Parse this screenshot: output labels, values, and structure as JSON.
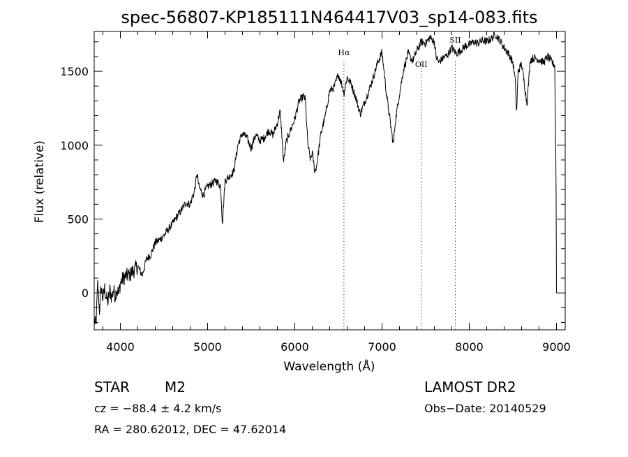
{
  "chart_data": {
    "type": "line",
    "title": "spec-56807-KP185111N464417V03_sp14-083.fits",
    "xlabel": "Wavelength (Å)",
    "ylabel": "Flux (relative)",
    "xlim": [
      3700,
      9100
    ],
    "ylim": [
      -250,
      1770
    ],
    "x_ticks": [
      4000,
      5000,
      6000,
      7000,
      8000,
      9000
    ],
    "y_ticks": [
      0,
      500,
      1000,
      1500
    ],
    "x_minor_step": 200,
    "y_minor_step": 100,
    "grid": false,
    "line_color": "#000000",
    "marker_color": "#cc0000",
    "series": [
      {
        "values": [
          [
            3700,
            -180
          ],
          [
            3720,
            -230
          ],
          [
            3740,
            60
          ],
          [
            3760,
            -120
          ],
          [
            3780,
            40
          ],
          [
            3800,
            -40
          ],
          [
            3820,
            30
          ],
          [
            3840,
            -40
          ],
          [
            3860,
            -60
          ],
          [
            3880,
            20
          ],
          [
            3900,
            -30
          ],
          [
            3920,
            20
          ],
          [
            3940,
            -20
          ],
          [
            3960,
            30
          ],
          [
            3980,
            -10
          ],
          [
            4000,
            70
          ],
          [
            4050,
            110
          ],
          [
            4100,
            120
          ],
          [
            4150,
            150
          ],
          [
            4200,
            180
          ],
          [
            4250,
            120
          ],
          [
            4300,
            230
          ],
          [
            4350,
            260
          ],
          [
            4400,
            340
          ],
          [
            4450,
            360
          ],
          [
            4500,
            390
          ],
          [
            4550,
            430
          ],
          [
            4600,
            470
          ],
          [
            4650,
            520
          ],
          [
            4700,
            560
          ],
          [
            4750,
            610
          ],
          [
            4800,
            600
          ],
          [
            4850,
            690
          ],
          [
            4880,
            810
          ],
          [
            4900,
            720
          ],
          [
            4950,
            660
          ],
          [
            5000,
            720
          ],
          [
            5050,
            740
          ],
          [
            5100,
            760
          ],
          [
            5150,
            720
          ],
          [
            5170,
            470
          ],
          [
            5200,
            760
          ],
          [
            5250,
            790
          ],
          [
            5300,
            820
          ],
          [
            5350,
            1010
          ],
          [
            5400,
            1080
          ],
          [
            5450,
            1050
          ],
          [
            5500,
            980
          ],
          [
            5550,
            1070
          ],
          [
            5600,
            1030
          ],
          [
            5650,
            1050
          ],
          [
            5700,
            1100
          ],
          [
            5750,
            1070
          ],
          [
            5800,
            1150
          ],
          [
            5830,
            1230
          ],
          [
            5850,
            1090
          ],
          [
            5870,
            880
          ],
          [
            5900,
            1020
          ],
          [
            5950,
            1100
          ],
          [
            6000,
            1180
          ],
          [
            6050,
            1300
          ],
          [
            6100,
            1330
          ],
          [
            6120,
            1310
          ],
          [
            6150,
            1000
          ],
          [
            6180,
            900
          ],
          [
            6200,
            950
          ],
          [
            6230,
            820
          ],
          [
            6250,
            860
          ],
          [
            6300,
            1080
          ],
          [
            6350,
            1200
          ],
          [
            6400,
            1370
          ],
          [
            6450,
            1390
          ],
          [
            6500,
            1480
          ],
          [
            6540,
            1410
          ],
          [
            6563,
            1350
          ],
          [
            6600,
            1460
          ],
          [
            6650,
            1410
          ],
          [
            6700,
            1320
          ],
          [
            6750,
            1210
          ],
          [
            6800,
            1290
          ],
          [
            6850,
            1370
          ],
          [
            6900,
            1460
          ],
          [
            6950,
            1560
          ],
          [
            7000,
            1630
          ],
          [
            7050,
            1350
          ],
          [
            7080,
            1220
          ],
          [
            7100,
            1130
          ],
          [
            7130,
            1000
          ],
          [
            7150,
            1150
          ],
          [
            7200,
            1350
          ],
          [
            7250,
            1520
          ],
          [
            7300,
            1620
          ],
          [
            7350,
            1570
          ],
          [
            7400,
            1640
          ],
          [
            7450,
            1700
          ],
          [
            7500,
            1690
          ],
          [
            7550,
            1730
          ],
          [
            7600,
            1700
          ],
          [
            7620,
            1600
          ],
          [
            7650,
            1560
          ],
          [
            7700,
            1590
          ],
          [
            7750,
            1610
          ],
          [
            7800,
            1660
          ],
          [
            7850,
            1620
          ],
          [
            7900,
            1640
          ],
          [
            7950,
            1670
          ],
          [
            8000,
            1680
          ],
          [
            8050,
            1700
          ],
          [
            8100,
            1690
          ],
          [
            8150,
            1710
          ],
          [
            8200,
            1700
          ],
          [
            8250,
            1720
          ],
          [
            8300,
            1750
          ],
          [
            8350,
            1710
          ],
          [
            8400,
            1660
          ],
          [
            8450,
            1620
          ],
          [
            8500,
            1560
          ],
          [
            8530,
            1420
          ],
          [
            8542,
            1200
          ],
          [
            8560,
            1500
          ],
          [
            8600,
            1550
          ],
          [
            8640,
            1380
          ],
          [
            8662,
            1280
          ],
          [
            8700,
            1580
          ],
          [
            8750,
            1590
          ],
          [
            8800,
            1580
          ],
          [
            8850,
            1560
          ],
          [
            8900,
            1600
          ],
          [
            8950,
            1560
          ],
          [
            8980,
            1540
          ],
          [
            8995,
            800
          ],
          [
            9000,
            0
          ]
        ]
      }
    ],
    "line_markers": [
      {
        "label": "Hα",
        "x": 6563
      },
      {
        "label": "OII",
        "x": 7450
      },
      {
        "label": "SII",
        "x": 7840
      }
    ]
  },
  "info": {
    "class_label": "STAR",
    "subclass_label": "M2",
    "survey_label": "LAMOST DR2",
    "cz_text": "cz = −88.4 ± 4.2 km/s",
    "obs_date_text": "Obs−Date: 20140529",
    "radec_text": "RA = 280.62012, DEC =  47.62014"
  }
}
